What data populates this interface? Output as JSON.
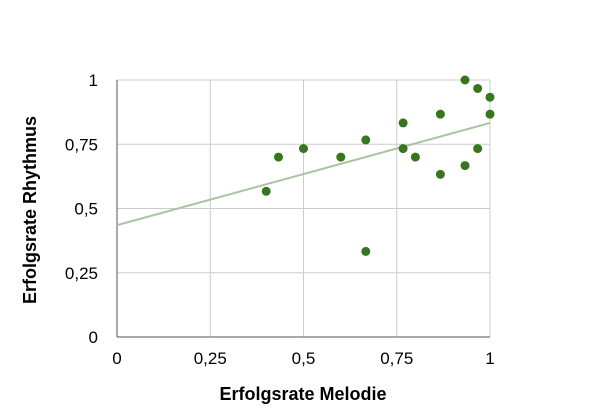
{
  "chart_data": {
    "type": "scatter",
    "title": "",
    "xlabel": "Erfolgsrate Melodie",
    "ylabel": "Erfolgsrate Rhythmus",
    "xlim": [
      0,
      1
    ],
    "ylim": [
      0,
      1
    ],
    "x_ticks": [
      0,
      0.25,
      0.5,
      0.75,
      1
    ],
    "x_tick_labels": [
      "0",
      "0,25",
      "0,5",
      "0,75",
      "1"
    ],
    "y_ticks": [
      0,
      0.25,
      0.5,
      0.75,
      1
    ],
    "y_tick_labels": [
      "0",
      "0,25",
      "0,5",
      "0,75",
      "1"
    ],
    "grid": true,
    "legend": "none",
    "point_color": "#38761d",
    "trendline_color": "#a9c4a0",
    "points": [
      {
        "x": 0.4,
        "y": 0.567
      },
      {
        "x": 0.433,
        "y": 0.7
      },
      {
        "x": 0.5,
        "y": 0.733
      },
      {
        "x": 0.6,
        "y": 0.7
      },
      {
        "x": 0.667,
        "y": 0.767
      },
      {
        "x": 0.667,
        "y": 0.333
      },
      {
        "x": 0.767,
        "y": 0.833
      },
      {
        "x": 0.767,
        "y": 0.733
      },
      {
        "x": 0.8,
        "y": 0.7
      },
      {
        "x": 0.867,
        "y": 0.867
      },
      {
        "x": 0.867,
        "y": 0.633
      },
      {
        "x": 0.933,
        "y": 1.0
      },
      {
        "x": 0.933,
        "y": 0.667
      },
      {
        "x": 0.967,
        "y": 0.967
      },
      {
        "x": 0.967,
        "y": 0.733
      },
      {
        "x": 1.0,
        "y": 0.933
      },
      {
        "x": 1.0,
        "y": 0.867
      }
    ],
    "trendline": {
      "x": [
        0,
        1
      ],
      "y": [
        0.435,
        0.833
      ]
    }
  }
}
